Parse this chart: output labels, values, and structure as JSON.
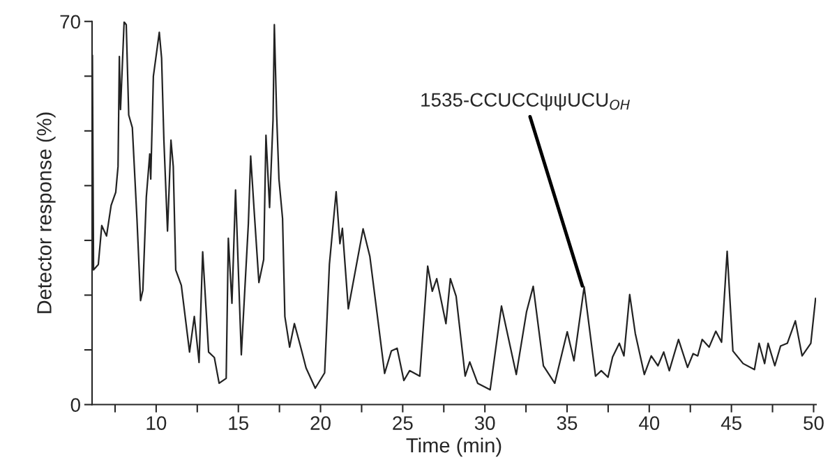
{
  "chart_data": {
    "type": "line",
    "xlabel": "Time (min)",
    "ylabel": "Detector response (%)",
    "xlim": [
      6.1,
      50.15
    ],
    "ylim": [
      0,
      70
    ],
    "xticks": [
      {
        "value": 7.5,
        "label": null
      },
      10,
      {
        "value": 12.5,
        "label": null
      },
      15,
      {
        "value": 17.5,
        "label": null
      },
      20,
      {
        "value": 22.5,
        "label": null
      },
      25,
      {
        "value": 27.5,
        "label": null
      },
      30,
      {
        "value": 32.5,
        "label": null
      },
      35,
      {
        "value": 37.5,
        "label": null
      },
      40,
      {
        "value": 42.5,
        "label": null
      },
      45,
      {
        "value": 47.5,
        "label": null
      },
      50
    ],
    "yticks": [
      0,
      {
        "value": 10,
        "label": null
      },
      {
        "value": 20,
        "label": null
      },
      {
        "value": 30,
        "label": null
      },
      {
        "value": 40,
        "label": null
      },
      {
        "value": 50,
        "label": null
      },
      {
        "value": 60,
        "label": null
      },
      70
    ],
    "grid": false,
    "legend": false,
    "marker": "none",
    "line_style": "solid",
    "annotations": [
      {
        "text": "1535-CCUCCψψUCU$_{OH}$",
        "x": 36.0,
        "y": 21
      }
    ],
    "series": [
      {
        "color": "#222222",
        "x": [
          6.12,
          6.19,
          6.48,
          6.69,
          6.98,
          7.26,
          7.54,
          7.68,
          7.76,
          7.83,
          8.05,
          8.18,
          8.33,
          8.55,
          8.83,
          9.05,
          9.19,
          9.4,
          9.61,
          9.67,
          9.83,
          10.19,
          10.33,
          10.47,
          10.69,
          10.9,
          11.04,
          11.19,
          11.53,
          12.03,
          12.32,
          12.61,
          12.83,
          13.19,
          13.54,
          13.83,
          14.26,
          14.39,
          14.61,
          14.83,
          15.18,
          15.61,
          15.75,
          15.96,
          16.25,
          16.54,
          16.68,
          16.9,
          17.11,
          17.19,
          17.33,
          17.47,
          17.69,
          17.83,
          18.12,
          18.41,
          18.76,
          19.12,
          19.68,
          20.25,
          20.54,
          20.95,
          21.18,
          21.33,
          21.69,
          22.59,
          23.0,
          23.9,
          24.31,
          24.66,
          25.07,
          25.42,
          26.04,
          26.52,
          26.8,
          27.07,
          27.63,
          27.9,
          28.25,
          28.8,
          29.08,
          29.56,
          30.32,
          31.01,
          31.91,
          32.53,
          32.94,
          33.56,
          34.25,
          35.01,
          35.42,
          36.04,
          36.73,
          37.08,
          37.49,
          37.77,
          38.18,
          38.46,
          38.81,
          39.15,
          39.7,
          40.12,
          40.53,
          40.88,
          41.22,
          41.78,
          42.33,
          42.67,
          42.95,
          43.22,
          43.64,
          44.05,
          44.4,
          44.74,
          45.09,
          45.71,
          46.4,
          46.68,
          47.02,
          47.23,
          47.64,
          47.99,
          48.4,
          48.89,
          49.3,
          49.83,
          50.12
        ],
        "values": [
          63.8,
          24.6,
          25.6,
          32.7,
          30.8,
          36.4,
          38.8,
          43.5,
          63.6,
          53.9,
          69.9,
          69.4,
          52.9,
          50.6,
          34.0,
          19.0,
          20.9,
          37.9,
          45.8,
          41.2,
          60.0,
          68.0,
          63.3,
          48.3,
          31.7,
          48.3,
          43.5,
          24.6,
          21.8,
          9.6,
          16.1,
          7.7,
          27.9,
          9.6,
          8.6,
          3.9,
          4.8,
          30.4,
          18.5,
          39.2,
          9.1,
          33.1,
          45.4,
          35.5,
          22.3,
          26.5,
          49.2,
          36.0,
          52.0,
          69.4,
          52.9,
          41.2,
          34.0,
          16.1,
          10.5,
          14.8,
          10.9,
          6.7,
          3.0,
          5.8,
          25.6,
          38.9,
          29.4,
          32.2,
          17.5,
          32.1,
          27.1,
          5.7,
          9.8,
          10.3,
          4.4,
          6.2,
          5.2,
          25.3,
          20.7,
          23.0,
          14.8,
          23.0,
          19.8,
          5.2,
          7.8,
          3.9,
          2.7,
          18.0,
          5.5,
          16.9,
          21.6,
          7.1,
          3.9,
          13.3,
          8.0,
          21.5,
          5.2,
          6.2,
          5.0,
          8.7,
          11.2,
          8.9,
          20.1,
          13.0,
          5.5,
          8.9,
          7.1,
          9.6,
          6.2,
          11.9,
          6.8,
          9.3,
          8.9,
          11.9,
          10.5,
          13.4,
          11.4,
          28.0,
          9.8,
          7.5,
          6.4,
          11.2,
          7.5,
          11.2,
          7.1,
          10.7,
          11.2,
          15.3,
          8.9,
          11.2,
          19.4
        ]
      }
    ]
  }
}
